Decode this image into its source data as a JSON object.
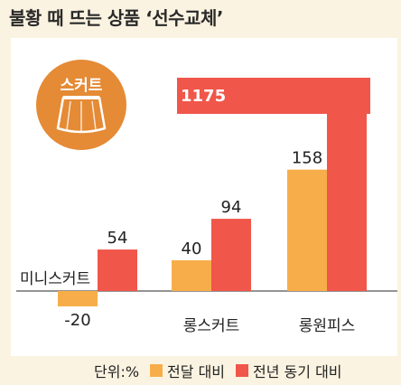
{
  "title": "불황 때 뜨는 상품 ‘선수교체’",
  "badge": {
    "label": "스커트",
    "icon": "skirt-icon"
  },
  "legend": {
    "unit": "단위:%",
    "items": [
      {
        "label": "전달 대비",
        "color": "#f7ae4a"
      },
      {
        "label": "전년 동기 대비",
        "color": "#f0564a"
      }
    ]
  },
  "chart_data": {
    "type": "bar",
    "categories": [
      "미니스커트",
      "롱스커트",
      "롱원피스"
    ],
    "series": [
      {
        "name": "전달 대비",
        "values": [
          -20,
          40,
          158
        ],
        "color": "#f7ae4a"
      },
      {
        "name": "전년 동기 대비",
        "values": [
          54,
          94,
          1175
        ],
        "color": "#f0564a"
      }
    ],
    "value_labels": [
      [
        "-20",
        "40",
        "158"
      ],
      [
        "54",
        "94",
        "1175"
      ]
    ],
    "note": "",
    "axis_broken_for": "1175",
    "grid": false
  }
}
